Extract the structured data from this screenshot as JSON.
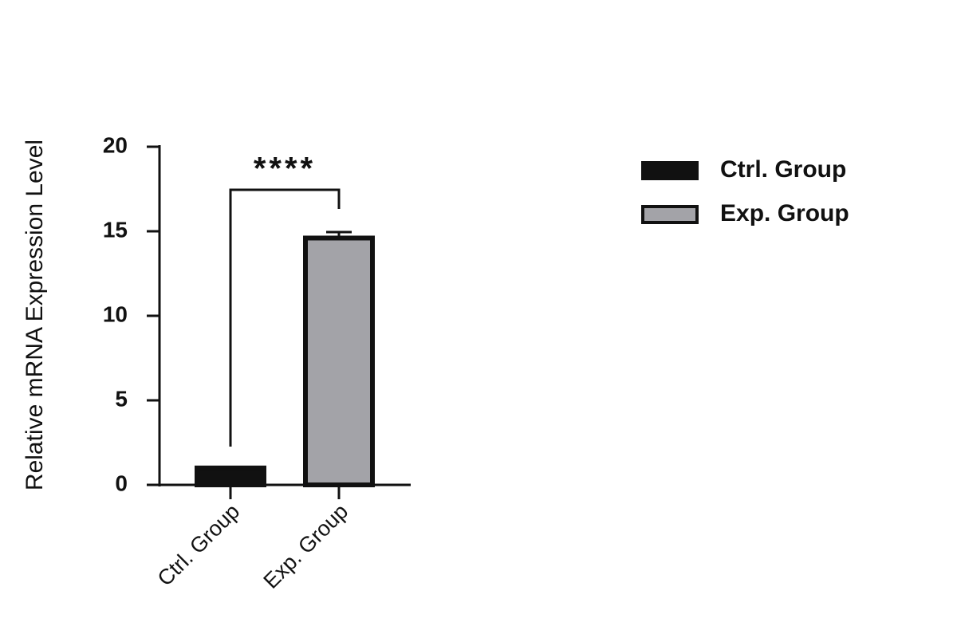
{
  "chart_data": {
    "type": "bar",
    "y_label": "Relative mRNA Expression Level",
    "categories": [
      "Ctrl. Group",
      "Exp. Group"
    ],
    "values": [
      1.0,
      14.6
    ],
    "errors": [
      0.05,
      0.35
    ],
    "colors": [
      "#111111",
      "#a3a3a8"
    ],
    "annotation": "****",
    "ylim": [
      0,
      20
    ],
    "yticks": [
      0,
      5,
      10,
      15,
      20
    ],
    "legend": "upper right"
  }
}
